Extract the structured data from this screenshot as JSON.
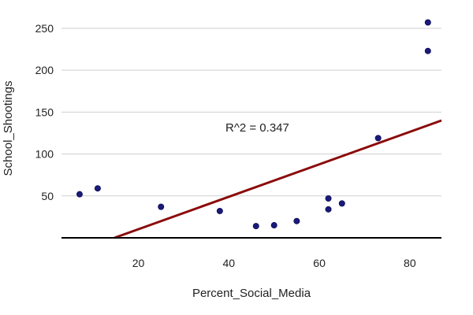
{
  "chart_data": {
    "type": "scatter",
    "xlabel": "Percent_Social_Media",
    "ylabel": "School_Shootings",
    "xlim": [
      3,
      87
    ],
    "ylim": [
      0,
      265
    ],
    "x_ticks": [
      20,
      40,
      60,
      80
    ],
    "y_ticks": [
      50,
      100,
      150,
      200,
      250
    ],
    "grid": "horizontal",
    "annotation": "R^2 =  0.347",
    "colors": {
      "points": "#1a1a7a",
      "trendline": "#8b0a0a",
      "baseline": "#000000",
      "grid": "#cfcfcf"
    },
    "series": [
      {
        "points": [
          {
            "x": 7,
            "y": 52
          },
          {
            "x": 11,
            "y": 59
          },
          {
            "x": 25,
            "y": 37
          },
          {
            "x": 38,
            "y": 32
          },
          {
            "x": 46,
            "y": 14
          },
          {
            "x": 50,
            "y": 15
          },
          {
            "x": 55,
            "y": 20
          },
          {
            "x": 62,
            "y": 47
          },
          {
            "x": 62,
            "y": 34
          },
          {
            "x": 65,
            "y": 41
          },
          {
            "x": 73,
            "y": 119
          },
          {
            "x": 84,
            "y": 257
          },
          {
            "x": 84,
            "y": 223
          }
        ]
      }
    ],
    "trendline": {
      "x_start": 14.7,
      "y_start": 0,
      "x_end": 87,
      "y_end": 140
    }
  }
}
